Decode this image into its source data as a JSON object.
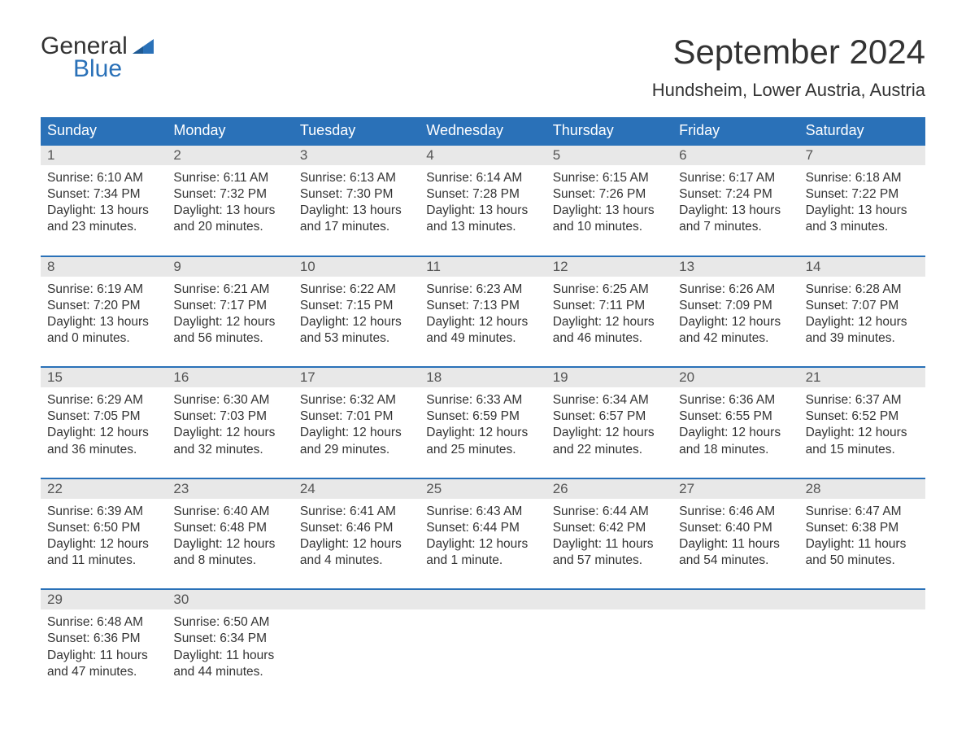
{
  "logo": {
    "line1": "General",
    "line2": "Blue",
    "color_general": "#333333",
    "color_blue": "#2a71b8",
    "flag_color": "#2a71b8"
  },
  "title": "September 2024",
  "location": "Hundsheim, Lower Austria, Austria",
  "colors": {
    "header_bg": "#2a71b8",
    "header_text": "#ffffff",
    "daynum_bg": "#e8e8e8",
    "daynum_border": "#2a71b8",
    "body_text": "#333333",
    "page_bg": "#ffffff"
  },
  "fonts": {
    "title_size": 42,
    "location_size": 22,
    "weekday_size": 18,
    "daynum_size": 17,
    "body_size": 15.5,
    "family": "Arial"
  },
  "weekdays": [
    "Sunday",
    "Monday",
    "Tuesday",
    "Wednesday",
    "Thursday",
    "Friday",
    "Saturday"
  ],
  "weeks": [
    [
      {
        "n": "1",
        "sr": "Sunrise: 6:10 AM",
        "ss": "Sunset: 7:34 PM",
        "d1": "Daylight: 13 hours",
        "d2": "and 23 minutes."
      },
      {
        "n": "2",
        "sr": "Sunrise: 6:11 AM",
        "ss": "Sunset: 7:32 PM",
        "d1": "Daylight: 13 hours",
        "d2": "and 20 minutes."
      },
      {
        "n": "3",
        "sr": "Sunrise: 6:13 AM",
        "ss": "Sunset: 7:30 PM",
        "d1": "Daylight: 13 hours",
        "d2": "and 17 minutes."
      },
      {
        "n": "4",
        "sr": "Sunrise: 6:14 AM",
        "ss": "Sunset: 7:28 PM",
        "d1": "Daylight: 13 hours",
        "d2": "and 13 minutes."
      },
      {
        "n": "5",
        "sr": "Sunrise: 6:15 AM",
        "ss": "Sunset: 7:26 PM",
        "d1": "Daylight: 13 hours",
        "d2": "and 10 minutes."
      },
      {
        "n": "6",
        "sr": "Sunrise: 6:17 AM",
        "ss": "Sunset: 7:24 PM",
        "d1": "Daylight: 13 hours",
        "d2": "and 7 minutes."
      },
      {
        "n": "7",
        "sr": "Sunrise: 6:18 AM",
        "ss": "Sunset: 7:22 PM",
        "d1": "Daylight: 13 hours",
        "d2": "and 3 minutes."
      }
    ],
    [
      {
        "n": "8",
        "sr": "Sunrise: 6:19 AM",
        "ss": "Sunset: 7:20 PM",
        "d1": "Daylight: 13 hours",
        "d2": "and 0 minutes."
      },
      {
        "n": "9",
        "sr": "Sunrise: 6:21 AM",
        "ss": "Sunset: 7:17 PM",
        "d1": "Daylight: 12 hours",
        "d2": "and 56 minutes."
      },
      {
        "n": "10",
        "sr": "Sunrise: 6:22 AM",
        "ss": "Sunset: 7:15 PM",
        "d1": "Daylight: 12 hours",
        "d2": "and 53 minutes."
      },
      {
        "n": "11",
        "sr": "Sunrise: 6:23 AM",
        "ss": "Sunset: 7:13 PM",
        "d1": "Daylight: 12 hours",
        "d2": "and 49 minutes."
      },
      {
        "n": "12",
        "sr": "Sunrise: 6:25 AM",
        "ss": "Sunset: 7:11 PM",
        "d1": "Daylight: 12 hours",
        "d2": "and 46 minutes."
      },
      {
        "n": "13",
        "sr": "Sunrise: 6:26 AM",
        "ss": "Sunset: 7:09 PM",
        "d1": "Daylight: 12 hours",
        "d2": "and 42 minutes."
      },
      {
        "n": "14",
        "sr": "Sunrise: 6:28 AM",
        "ss": "Sunset: 7:07 PM",
        "d1": "Daylight: 12 hours",
        "d2": "and 39 minutes."
      }
    ],
    [
      {
        "n": "15",
        "sr": "Sunrise: 6:29 AM",
        "ss": "Sunset: 7:05 PM",
        "d1": "Daylight: 12 hours",
        "d2": "and 36 minutes."
      },
      {
        "n": "16",
        "sr": "Sunrise: 6:30 AM",
        "ss": "Sunset: 7:03 PM",
        "d1": "Daylight: 12 hours",
        "d2": "and 32 minutes."
      },
      {
        "n": "17",
        "sr": "Sunrise: 6:32 AM",
        "ss": "Sunset: 7:01 PM",
        "d1": "Daylight: 12 hours",
        "d2": "and 29 minutes."
      },
      {
        "n": "18",
        "sr": "Sunrise: 6:33 AM",
        "ss": "Sunset: 6:59 PM",
        "d1": "Daylight: 12 hours",
        "d2": "and 25 minutes."
      },
      {
        "n": "19",
        "sr": "Sunrise: 6:34 AM",
        "ss": "Sunset: 6:57 PM",
        "d1": "Daylight: 12 hours",
        "d2": "and 22 minutes."
      },
      {
        "n": "20",
        "sr": "Sunrise: 6:36 AM",
        "ss": "Sunset: 6:55 PM",
        "d1": "Daylight: 12 hours",
        "d2": "and 18 minutes."
      },
      {
        "n": "21",
        "sr": "Sunrise: 6:37 AM",
        "ss": "Sunset: 6:52 PM",
        "d1": "Daylight: 12 hours",
        "d2": "and 15 minutes."
      }
    ],
    [
      {
        "n": "22",
        "sr": "Sunrise: 6:39 AM",
        "ss": "Sunset: 6:50 PM",
        "d1": "Daylight: 12 hours",
        "d2": "and 11 minutes."
      },
      {
        "n": "23",
        "sr": "Sunrise: 6:40 AM",
        "ss": "Sunset: 6:48 PM",
        "d1": "Daylight: 12 hours",
        "d2": "and 8 minutes."
      },
      {
        "n": "24",
        "sr": "Sunrise: 6:41 AM",
        "ss": "Sunset: 6:46 PM",
        "d1": "Daylight: 12 hours",
        "d2": "and 4 minutes."
      },
      {
        "n": "25",
        "sr": "Sunrise: 6:43 AM",
        "ss": "Sunset: 6:44 PM",
        "d1": "Daylight: 12 hours",
        "d2": "and 1 minute."
      },
      {
        "n": "26",
        "sr": "Sunrise: 6:44 AM",
        "ss": "Sunset: 6:42 PM",
        "d1": "Daylight: 11 hours",
        "d2": "and 57 minutes."
      },
      {
        "n": "27",
        "sr": "Sunrise: 6:46 AM",
        "ss": "Sunset: 6:40 PM",
        "d1": "Daylight: 11 hours",
        "d2": "and 54 minutes."
      },
      {
        "n": "28",
        "sr": "Sunrise: 6:47 AM",
        "ss": "Sunset: 6:38 PM",
        "d1": "Daylight: 11 hours",
        "d2": "and 50 minutes."
      }
    ],
    [
      {
        "n": "29",
        "sr": "Sunrise: 6:48 AM",
        "ss": "Sunset: 6:36 PM",
        "d1": "Daylight: 11 hours",
        "d2": "and 47 minutes."
      },
      {
        "n": "30",
        "sr": "Sunrise: 6:50 AM",
        "ss": "Sunset: 6:34 PM",
        "d1": "Daylight: 11 hours",
        "d2": "and 44 minutes."
      },
      null,
      null,
      null,
      null,
      null
    ]
  ]
}
